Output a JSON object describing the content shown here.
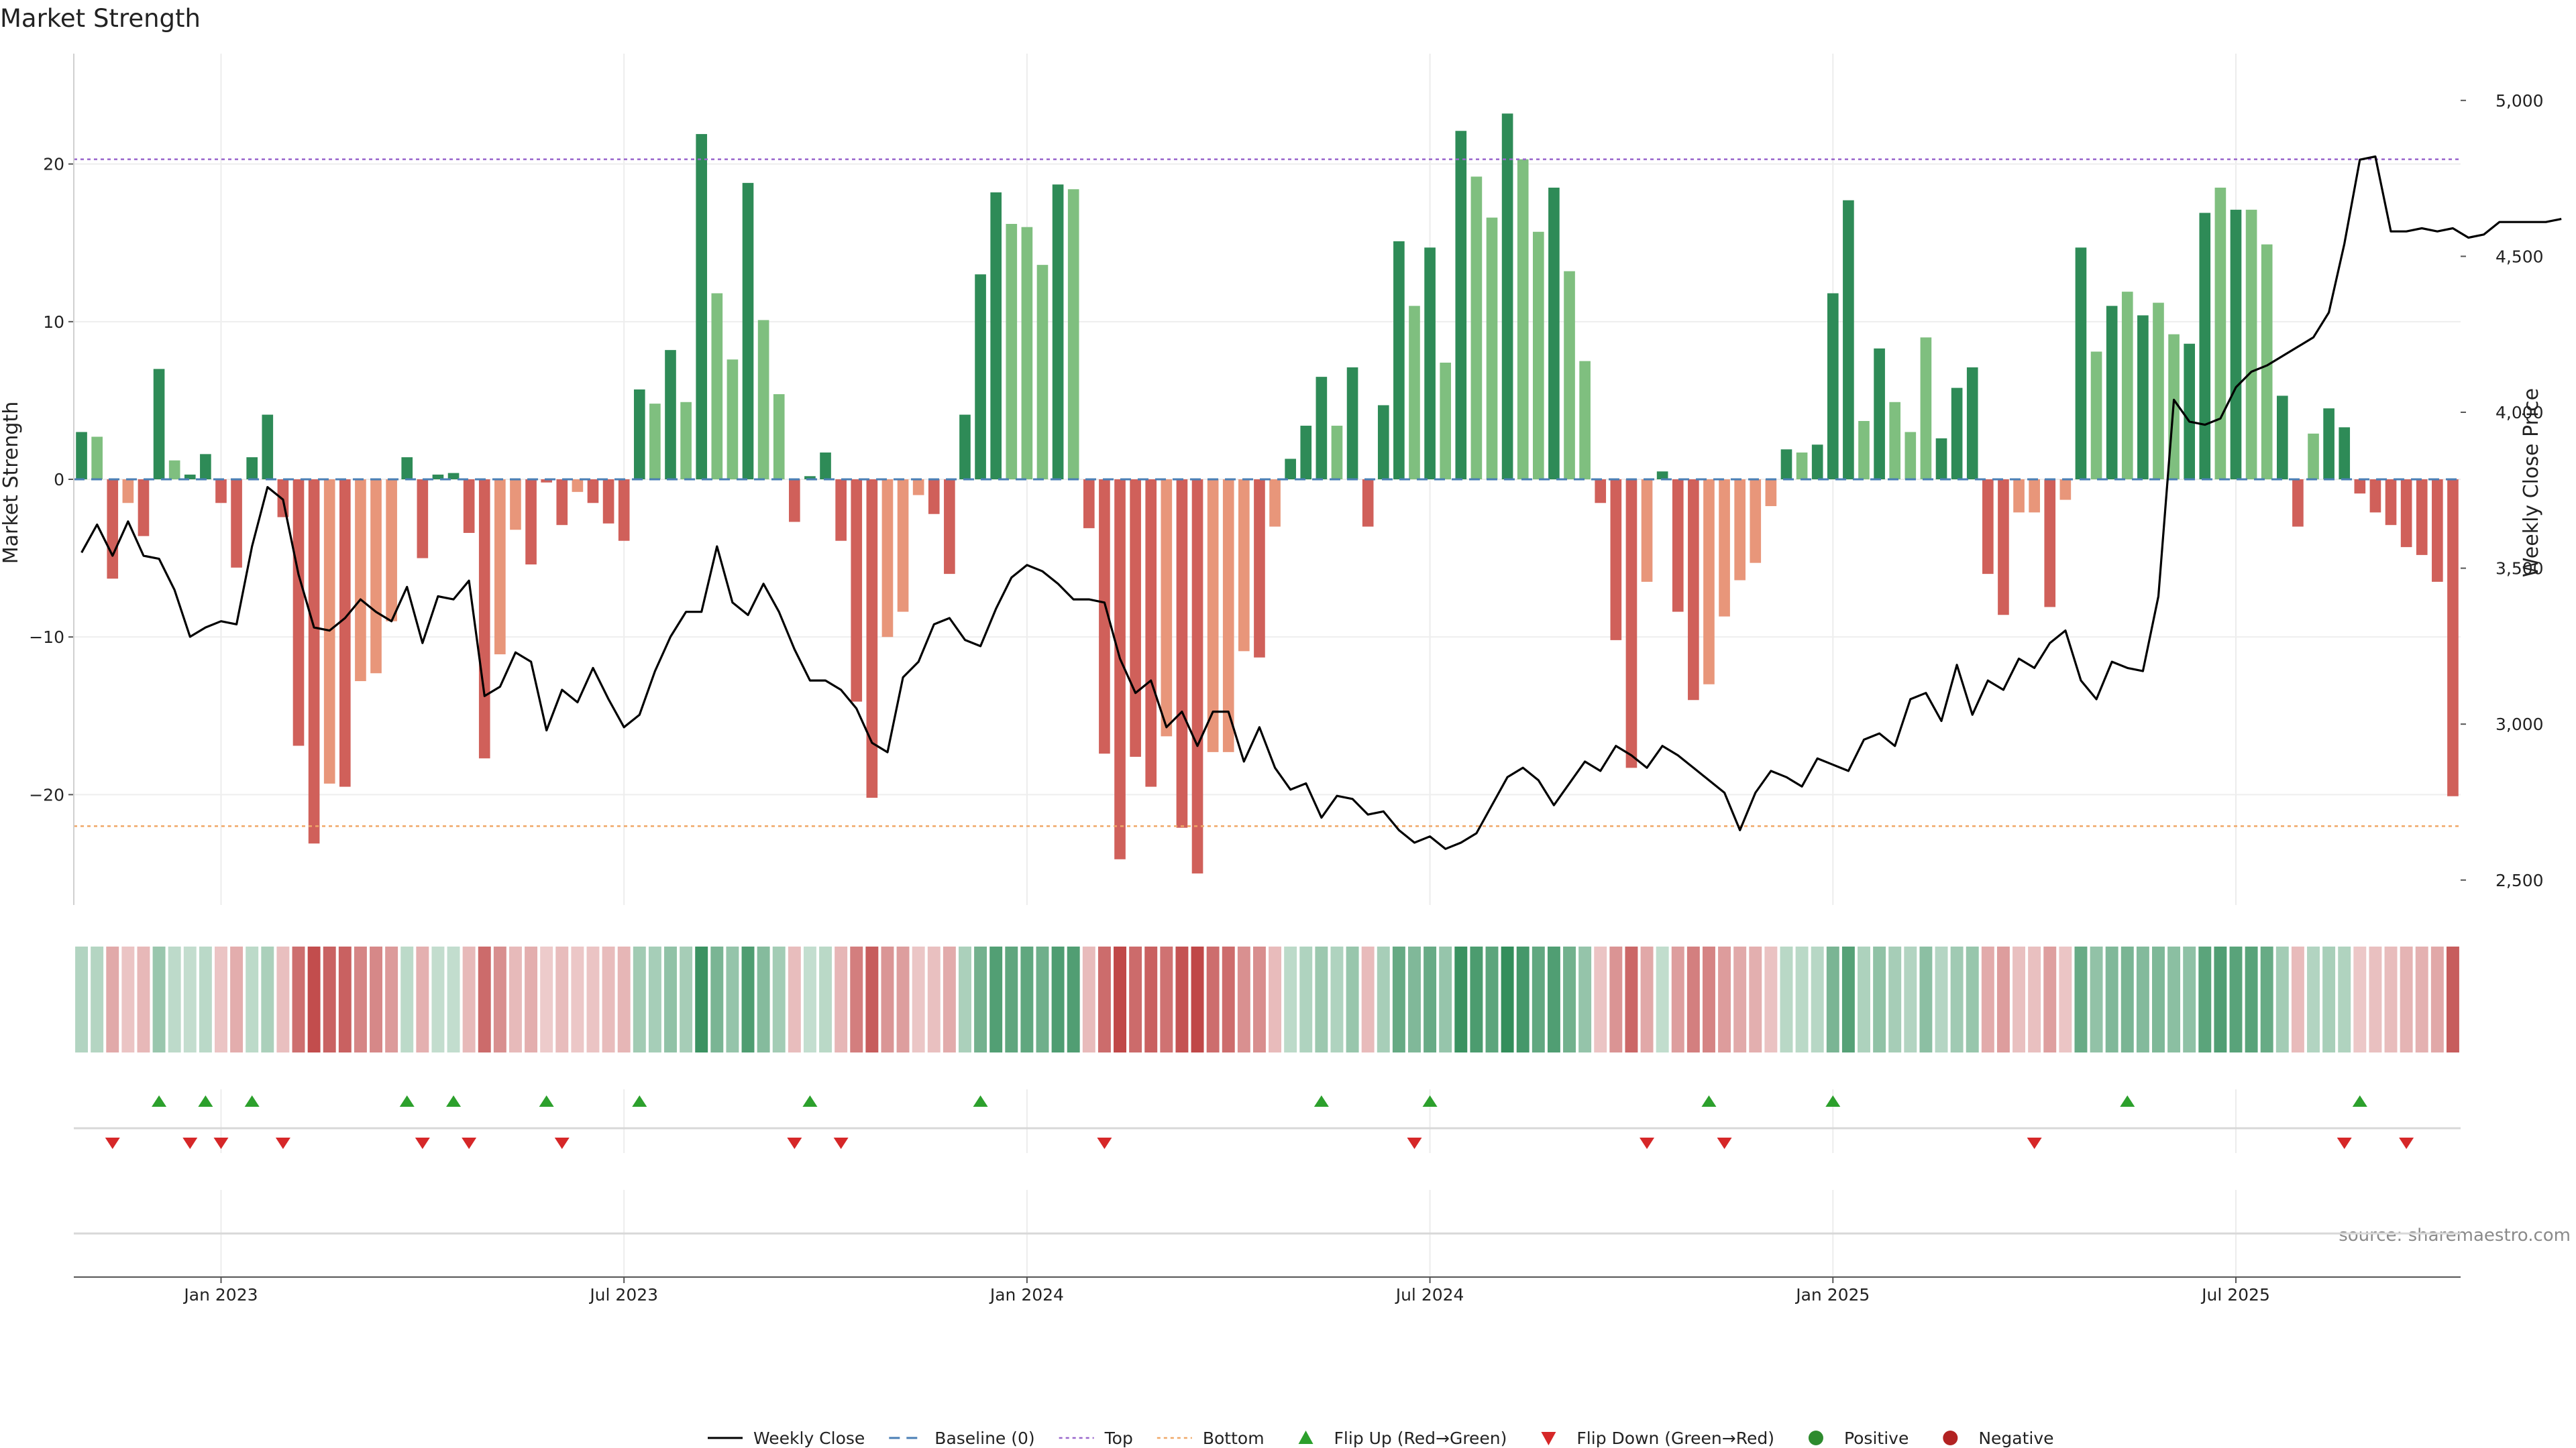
{
  "title": "Market Strength",
  "source_text": "source: sharemaestro.com",
  "colors": {
    "pos_strong": "#2e8b57",
    "pos_light": "#7fbf7f",
    "neg_strong": "#d0605a",
    "neg_light": "#e8967a",
    "baseline": "#4a7fb5",
    "top": "#9966cc",
    "bottom": "#f0a868",
    "flip_up": "#2ca02c",
    "flip_down": "#d62728",
    "positive_dot": "#2e8b2e",
    "negative_dot": "#b22222",
    "close_line": "#000000"
  },
  "chart_data": {
    "type": "bar",
    "title": "Market Strength",
    "ylabel": "Market Strength",
    "ylabel_right": "Weekly Close Price",
    "ylim": [
      -27,
      27
    ],
    "ylim_right": [
      2420,
      5150
    ],
    "yticks_left": [
      -20,
      -10,
      0,
      10,
      20
    ],
    "yticks_right": [
      "2,500",
      "3,000",
      "3,500",
      "4,000",
      "4,500",
      "5,000"
    ],
    "yticks_right_values": [
      2500,
      3000,
      3500,
      4000,
      4500,
      5000
    ],
    "x_tick_labels": [
      "Jan 2023",
      "Jul 2023",
      "Jan 2024",
      "Jul 2024",
      "Jan 2025",
      "Jul 2025"
    ],
    "x_tick_index": [
      9,
      35,
      61,
      87,
      113,
      139
    ],
    "top_level": 20.3,
    "bottom_level": -22,
    "strength": [
      3,
      2.7,
      -6.3,
      -1.5,
      -3.6,
      7,
      1.2,
      0.3,
      1.6,
      -1.5,
      -5.6,
      1.4,
      4.1,
      -2.4,
      -16.9,
      -23.1,
      -19.3,
      -19.5,
      -12.8,
      -12.3,
      -9,
      1.4,
      -5,
      0.3,
      0.4,
      -3.4,
      -17.7,
      -11.1,
      -3.2,
      -5.4,
      -0.2,
      -2.9,
      -0.8,
      -1.5,
      -2.8,
      -3.9,
      5.7,
      4.8,
      8.2,
      4.9,
      21.9,
      11.8,
      7.6,
      18.8,
      10.1,
      5.4,
      -2.7,
      0.2,
      1.7,
      -3.9,
      -14.1,
      -20.2,
      -10,
      -8.4,
      -1,
      -2.2,
      -6,
      4.1,
      13,
      18.2,
      16.2,
      16,
      13.6,
      18.7,
      18.4,
      -3.1,
      -17.4,
      -24.1,
      -17.6,
      -19.5,
      -16.3,
      -22.1,
      -25,
      -17.3,
      -17.3,
      -10.9,
      -11.3,
      -3,
      1.3,
      3.4,
      6.5,
      3.4,
      7.1,
      -3,
      4.7,
      15.1,
      11,
      14.7,
      7.4,
      22.1,
      19.2,
      16.6,
      23.2,
      20.3,
      15.7,
      18.5,
      13.2,
      7.5,
      -1.5,
      -10.2,
      -18.3,
      -6.5,
      0.5,
      -8.4,
      -14,
      -13,
      -8.7,
      -6.4,
      -5.3,
      -1.7,
      1.9,
      1.7,
      2.2,
      11.8,
      17.7,
      3.7,
      8.3,
      4.9,
      3,
      9,
      2.6,
      5.8,
      7.1,
      -6,
      -8.6,
      -2.1,
      -2.1,
      -8.1,
      -1.3,
      14.7,
      8.1,
      11,
      11.9,
      10.4,
      11.2,
      9.2,
      8.6,
      16.9,
      18.5,
      17.1,
      17.1,
      14.9,
      5.3,
      -3,
      2.9,
      4.5,
      3.3,
      -0.9,
      -2.1,
      -2.9,
      -4.3,
      -4.8,
      -6.5,
      -20.1
    ],
    "strength_shade": [
      "s",
      "l",
      "s",
      "l",
      "s",
      "s",
      "l",
      "s",
      "s",
      "s",
      "s",
      "s",
      "s",
      "s",
      "s",
      "s",
      "l",
      "s",
      "l",
      "l",
      "l",
      "s",
      "s",
      "s",
      "s",
      "s",
      "s",
      "l",
      "l",
      "s",
      "s",
      "s",
      "l",
      "s",
      "s",
      "s",
      "s",
      "l",
      "s",
      "l",
      "s",
      "l",
      "l",
      "s",
      "l",
      "l",
      "s",
      "s",
      "s",
      "s",
      "s",
      "s",
      "l",
      "l",
      "l",
      "s",
      "s",
      "s",
      "s",
      "s",
      "l",
      "l",
      "l",
      "s",
      "l",
      "s",
      "s",
      "s",
      "s",
      "s",
      "l",
      "s",
      "s",
      "l",
      "l",
      "l",
      "s",
      "l",
      "s",
      "s",
      "s",
      "l",
      "s",
      "s",
      "s",
      "s",
      "l",
      "s",
      "l",
      "s",
      "l",
      "l",
      "s",
      "l",
      "l",
      "s",
      "l",
      "l",
      "s",
      "s",
      "s",
      "l",
      "s",
      "s",
      "s",
      "l",
      "l",
      "l",
      "l",
      "l",
      "s",
      "l",
      "s",
      "s",
      "s",
      "l",
      "s",
      "l",
      "l",
      "l",
      "s",
      "s",
      "s",
      "s",
      "s",
      "l",
      "l",
      "s",
      "l",
      "s",
      "l",
      "s",
      "l",
      "s",
      "l",
      "l",
      "s",
      "s",
      "l",
      "s",
      "l",
      "l",
      "s",
      "s",
      "l",
      "s",
      "s",
      "s",
      "s",
      "s",
      "s",
      "s",
      "s"
    ],
    "series": [
      {
        "name": "Weekly Close",
        "values": [
          3550,
          3640,
          3540,
          3650,
          3540,
          3530,
          3430,
          3280,
          3310,
          3330,
          3320,
          3570,
          3760,
          3720,
          3480,
          3310,
          3300,
          3340,
          3400,
          3360,
          3330,
          3440,
          3260,
          3410,
          3400,
          3460,
          3090,
          3120,
          3230,
          3200,
          2980,
          3110,
          3070,
          3180,
          3080,
          2990,
          3030,
          3170,
          3280,
          3360,
          3360,
          3570,
          3390,
          3350,
          3450,
          3360,
          3240,
          3140,
          3140,
          3110,
          3050,
          2940,
          2910,
          3150,
          3200,
          3320,
          3340,
          3270,
          3250,
          3370,
          3470,
          3510,
          3490,
          3450,
          3400,
          3400,
          3390,
          3210,
          3100,
          3140,
          2990,
          3040,
          2930,
          3040,
          3040,
          2880,
          2990,
          2860,
          2790,
          2810,
          2700,
          2770,
          2760,
          2710,
          2720,
          2660,
          2620,
          2640,
          2600,
          2620,
          2650,
          2740,
          2830,
          2860,
          2820,
          2740,
          2810,
          2880,
          2850,
          2930,
          2900,
          2860,
          2930,
          2900,
          2860,
          2820,
          2780,
          2660,
          2780,
          2850,
          2830,
          2800,
          2890,
          2870,
          2850,
          2950,
          2970,
          2930,
          3080,
          3100,
          3010,
          3190,
          3030,
          3140,
          3110,
          3210,
          3180,
          3260,
          3300,
          3140,
          3080,
          3200,
          3180,
          3170,
          3410,
          4040,
          3970,
          3960,
          3980,
          4080,
          4130,
          4150,
          4180,
          4210,
          4240,
          4320,
          4540,
          4810,
          4820,
          4580,
          4580,
          4590,
          4580,
          4590,
          4560,
          4570,
          4610,
          4610,
          4610,
          4610,
          4620
        ]
      },
      {
        "name": "Baseline (0)"
      },
      {
        "name": "Top"
      },
      {
        "name": "Bottom"
      }
    ],
    "flip_up_index": [
      5,
      8,
      11,
      21,
      24,
      30,
      36,
      47,
      58,
      80,
      87,
      105,
      113,
      132,
      147
    ],
    "flip_down_index": [
      2,
      7,
      9,
      13,
      22,
      25,
      31,
      46,
      49,
      66,
      86,
      101,
      106,
      126,
      146,
      150
    ]
  },
  "legend": [
    {
      "label": "Weekly Close",
      "kind": "line"
    },
    {
      "label": "Baseline (0)",
      "kind": "dashed"
    },
    {
      "label": "Top",
      "kind": "dotted-top"
    },
    {
      "label": "Bottom",
      "kind": "dotted-bottom"
    },
    {
      "label": "Flip Up (Red→Green)",
      "kind": "tri-up"
    },
    {
      "label": "Flip Down (Green→Red)",
      "kind": "tri-down"
    },
    {
      "label": "Positive",
      "kind": "dot-pos"
    },
    {
      "label": "Negative",
      "kind": "dot-neg"
    }
  ]
}
